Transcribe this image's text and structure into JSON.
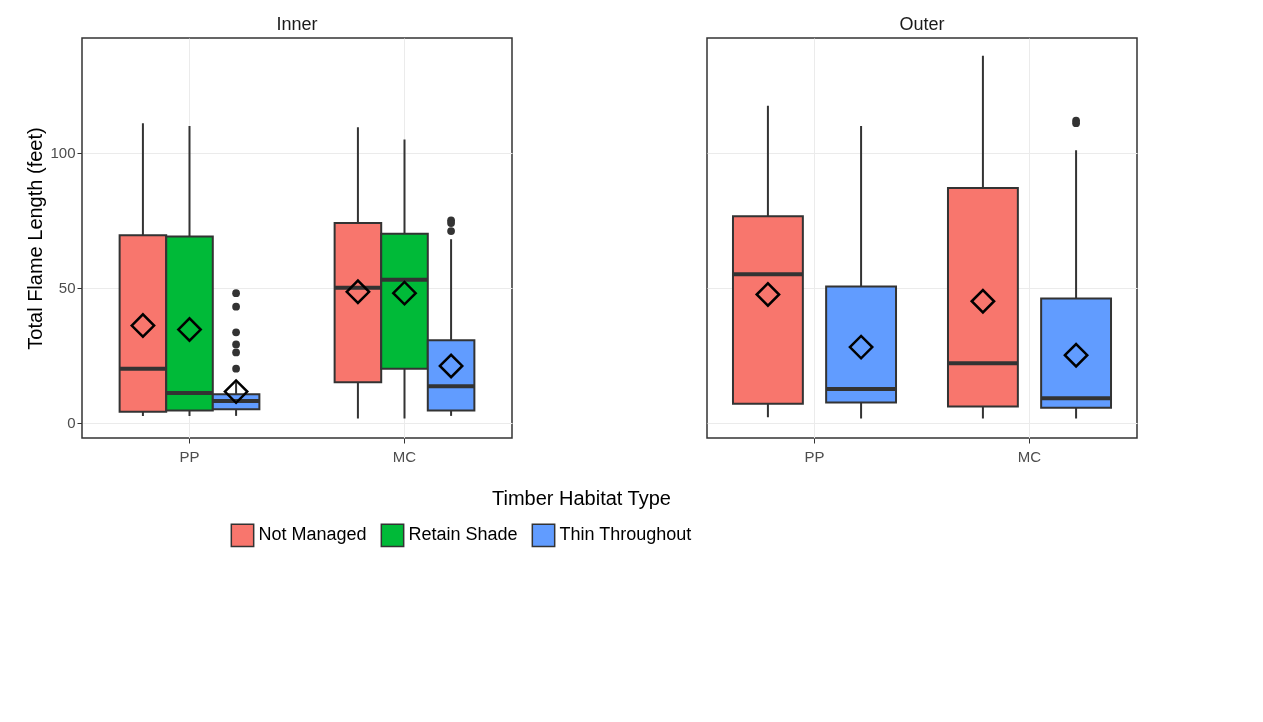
{
  "chart_data": [
    {
      "type": "box",
      "title": "Inner",
      "xlabel": "Timber Habitat Type",
      "ylabel": "Total Flame Length (feet)",
      "categories": [
        "PP",
        "MC"
      ],
      "ylim": [
        -5.7,
        142.6
      ],
      "yticks": [
        0,
        50,
        100
      ],
      "grid": true,
      "legend": "bottom",
      "marker": "diamond",
      "series": [
        {
          "name": "Not Managed",
          "color": "#f8766d",
          "boxes": [
            {
              "low": 2.5,
              "q1": 4,
              "median": 20,
              "q3": 69.5,
              "high": 111,
              "mean": 36
            },
            {
              "low": 1.5,
              "q1": 15,
              "median": 50,
              "q3": 74,
              "high": 109.5,
              "mean": 48.5
            }
          ]
        },
        {
          "name": "Retain Shade",
          "color": "#00ba38",
          "boxes": [
            {
              "low": 2.5,
              "q1": 4.5,
              "median": 11,
              "q3": 69,
              "high": 110,
              "mean": 34.5
            },
            {
              "low": 1.5,
              "q1": 20,
              "median": 53,
              "q3": 70,
              "high": 105,
              "mean": 48
            }
          ]
        },
        {
          "name": "Thin Throughout",
          "color": "#619cff",
          "boxes": [
            {
              "low": 2.5,
              "q1": 5,
              "median": 8,
              "q3": 10.5,
              "high": 15,
              "mean": 11.5,
              "outliers": [
                48,
                43,
                33.5,
                29,
                26,
                20
              ]
            },
            {
              "low": 2.5,
              "q1": 4.5,
              "median": 13.5,
              "q3": 30.5,
              "high": 68,
              "mean": 21,
              "outliers": [
                75,
                74,
                71
              ]
            }
          ]
        }
      ]
    },
    {
      "type": "box",
      "title": "Outer",
      "categories": [
        "PP",
        "MC"
      ],
      "ylim": [
        -5.7,
        142.6
      ],
      "yticks": [
        0,
        50,
        100
      ],
      "grid": true,
      "tick_labels": "x",
      "marker": "diamond",
      "series": [
        {
          "name": "Not Managed",
          "color": "#f8766d",
          "boxes": [
            {
              "low": 2,
              "q1": 7,
              "median": 55,
              "q3": 76.5,
              "high": 117.5,
              "mean": 47.5
            },
            {
              "low": 1.5,
              "q1": 6,
              "median": 22,
              "q3": 87,
              "high": 136,
              "mean": 45
            }
          ]
        },
        {
          "name": "Thin Throughout",
          "color": "#619cff",
          "boxes": [
            {
              "low": 1.5,
              "q1": 7.5,
              "median": 12.5,
              "q3": 50.5,
              "high": 110,
              "mean": 28
            },
            {
              "low": 1.5,
              "q1": 5.5,
              "median": 9,
              "q3": 46,
              "high": 101,
              "mean": 25,
              "outliers": [
                112,
                111
              ]
            }
          ]
        }
      ]
    }
  ]
}
